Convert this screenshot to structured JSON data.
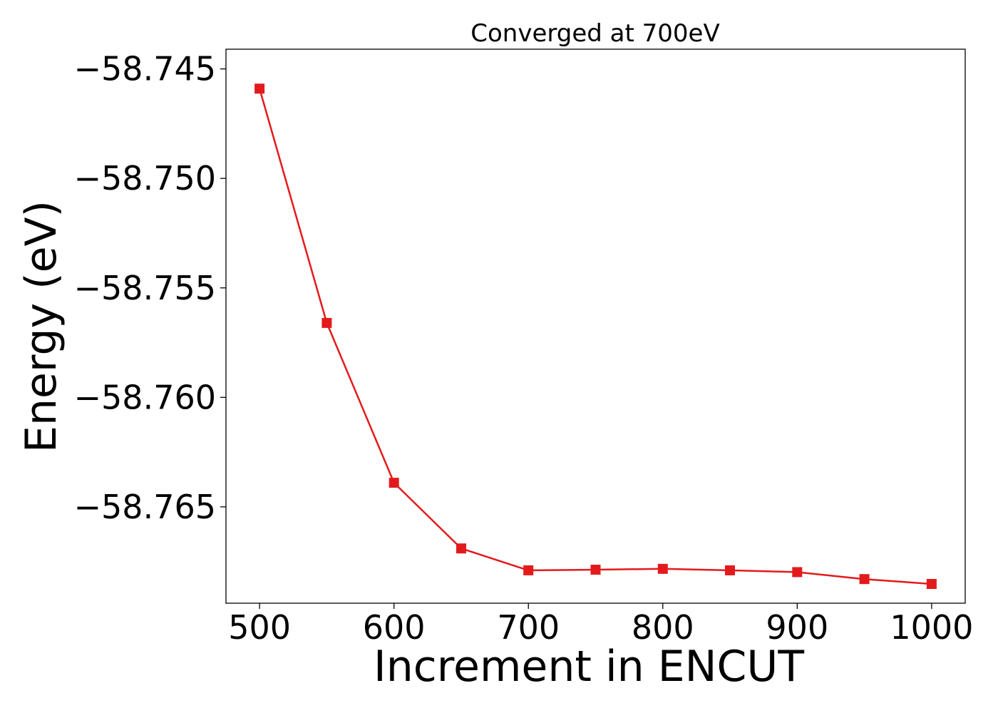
{
  "chart_data": {
    "type": "line",
    "title": "Converged at 700eV",
    "xlabel": "Increment in ENCUT",
    "ylabel": "Energy (eV)",
    "x": [
      500,
      550,
      600,
      650,
      700,
      750,
      800,
      850,
      900,
      950,
      1000
    ],
    "series": [
      {
        "values": [
          -58.7459,
          -58.7566,
          -58.7639,
          -58.7669,
          -58.7679,
          -58.76787,
          -58.76783,
          -58.7679,
          -58.76798,
          -58.7683,
          -58.76852
        ],
        "color": "#e31a1c",
        "marker": "square"
      }
    ],
    "xlim": [
      475,
      1025
    ],
    "ylim": [
      -58.7694,
      -58.7441
    ],
    "xticks": [
      500,
      600,
      700,
      800,
      900,
      1000
    ],
    "xtick_labels": [
      "500",
      "600",
      "700",
      "800",
      "900",
      "1000"
    ],
    "yticks": [
      -58.745,
      -58.75,
      -58.755,
      -58.76,
      -58.765
    ],
    "ytick_labels": [
      "−58.745",
      "−58.750",
      "−58.755",
      "−58.760",
      "−58.765"
    ],
    "grid": false,
    "legend": false
  }
}
